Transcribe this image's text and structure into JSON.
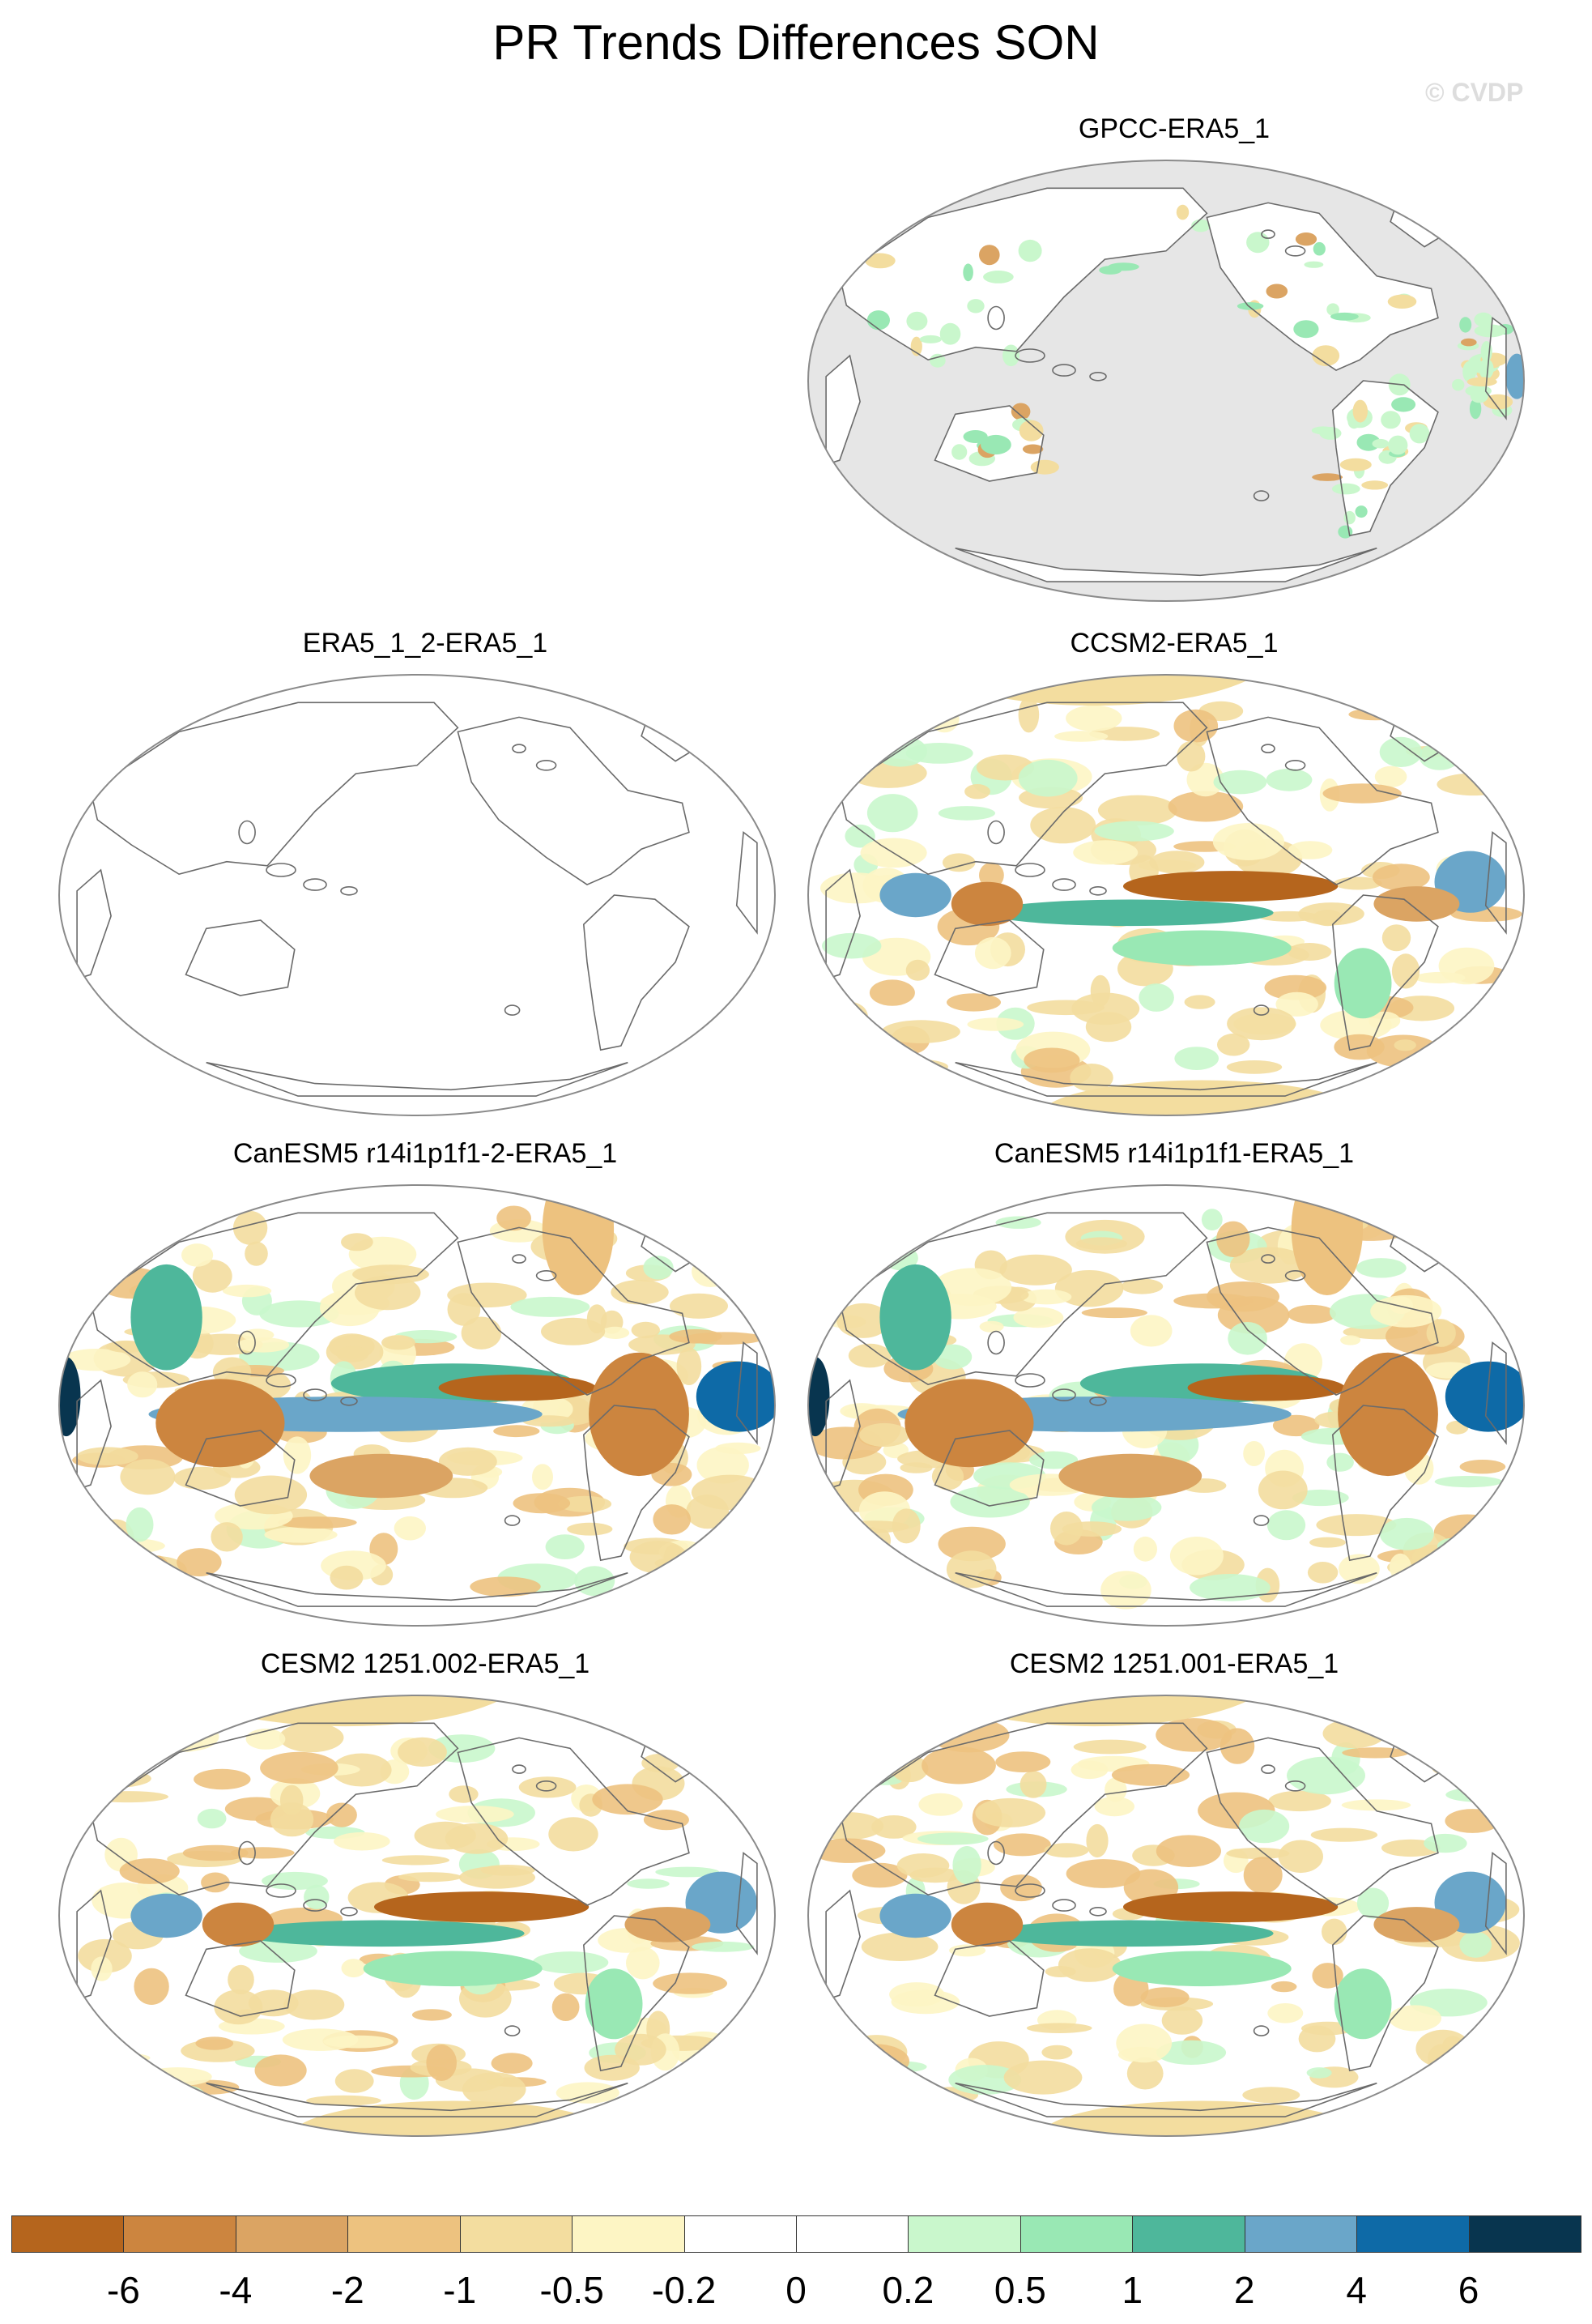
{
  "title": "PR Trends Differences SON",
  "watermark": "© CVDP",
  "panels": [
    {
      "id": "gpcc",
      "title": "GPCC-ERA5_1",
      "style": "masked"
    },
    {
      "id": "era5",
      "title": "ERA5_1_2-ERA5_1",
      "style": "blank"
    },
    {
      "id": "ccsm2",
      "title": "CCSM2-ERA5_1",
      "style": "field"
    },
    {
      "id": "canesm5b",
      "title": "CanESM5 r14i1p1f1-2-ERA5_1",
      "style": "strong"
    },
    {
      "id": "canesm5a",
      "title": "CanESM5 r14i1p1f1-ERA5_1",
      "style": "strong"
    },
    {
      "id": "cesm2b",
      "title": "CESM2 1251.002-ERA5_1",
      "style": "field"
    },
    {
      "id": "cesm2a",
      "title": "CESM2 1251.001-ERA5_1",
      "style": "field"
    }
  ],
  "colorbar": {
    "colors": [
      "#b5651d",
      "#cc853f",
      "#dba463",
      "#edc27f",
      "#f3dd9f",
      "#fdf5c4",
      "#ffffff",
      "#ffffff",
      "#c9f7cc",
      "#99e8b4",
      "#4eb79b",
      "#6aa6c9",
      "#0e6aa7",
      "#08354f"
    ],
    "labels": [
      "-6",
      "-4",
      "-2",
      "-1",
      "-0.5",
      "-0.2",
      "0",
      "0.2",
      "0.5",
      "1",
      "2",
      "4",
      "6"
    ]
  },
  "colors": {
    "land_mask": "#e6e6e6",
    "coast": "#6b6b6b",
    "frame": "#8a8a8a"
  }
}
